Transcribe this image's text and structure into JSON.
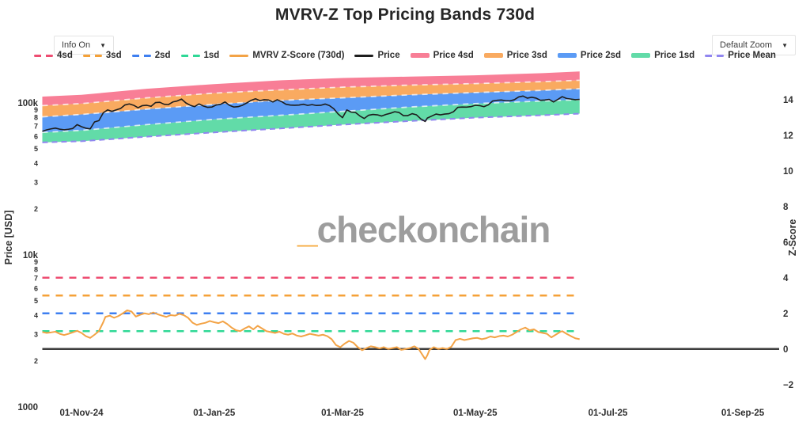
{
  "header": {
    "title": "MVRV-Z Top Pricing Bands 730d"
  },
  "controls": {
    "info_dropdown_label": "Info On",
    "zoom_dropdown_label": "Default Zoom",
    "dropdown_arrow": "▼"
  },
  "watermark": {
    "underscore": "_",
    "text": "checkonchain"
  },
  "chart_data": {
    "type": "line",
    "title": "MVRV-Z Top Pricing Bands 730d",
    "x_axis": {
      "ticks": [
        {
          "date": "2024-11-01",
          "label": "01-Nov-24"
        },
        {
          "date": "2025-01-01",
          "label": "01-Jan-25"
        },
        {
          "date": "2025-03-01",
          "label": "01-Mar-25"
        },
        {
          "date": "2025-05-01",
          "label": "01-May-25"
        },
        {
          "date": "2025-07-01",
          "label": "01-Jul-25"
        },
        {
          "date": "2025-09-01",
          "label": "01-Sep-25"
        }
      ]
    },
    "y_left": {
      "label": "Price [USD]",
      "scale": "log",
      "major_ticks": [
        {
          "value_kusd": 100,
          "label": "100k"
        },
        {
          "value_kusd": 10,
          "label": "10k"
        },
        {
          "value_kusd": 1,
          "label": "1000"
        }
      ],
      "minor_tick_digits": [
        9,
        8,
        7,
        6,
        5,
        4,
        3,
        2
      ]
    },
    "y_right": {
      "label": "Z-Score",
      "ticks": [
        14,
        12,
        10,
        8,
        6,
        4,
        2,
        0,
        -2
      ]
    },
    "legend": [
      {
        "label": "4sd",
        "swatch": "dash",
        "color": "#ee4d72"
      },
      {
        "label": "3sd",
        "swatch": "dash",
        "color": "#f5a138"
      },
      {
        "label": "2sd",
        "swatch": "dash",
        "color": "#3e7ff0"
      },
      {
        "label": "1sd",
        "swatch": "dash",
        "color": "#2fd896"
      },
      {
        "label": "MVRV Z-Score (730d)",
        "swatch": "line",
        "color": "#f3a346"
      },
      {
        "label": "Price",
        "swatch": "line",
        "color": "#1e1e1e"
      },
      {
        "label": "Price 4sd",
        "swatch": "band",
        "color": "#f87e96"
      },
      {
        "label": "Price 3sd",
        "swatch": "band",
        "color": "#f9aa60"
      },
      {
        "label": "Price 2sd",
        "swatch": "band",
        "color": "#5b9bf5"
      },
      {
        "label": "Price 1sd",
        "swatch": "band",
        "color": "#62dba8"
      },
      {
        "label": "Price Mean",
        "swatch": "dash",
        "color": "#9186f0"
      }
    ],
    "zscore_thresholds": [
      {
        "name": "4sd",
        "z": 4,
        "color": "#ee4d72"
      },
      {
        "name": "3sd",
        "z": 3,
        "color": "#f5a138"
      },
      {
        "name": "2sd",
        "z": 2,
        "color": "#3e7ff0"
      },
      {
        "name": "1sd",
        "z": 1,
        "color": "#2fd896"
      }
    ],
    "zero_line": {
      "z": 0,
      "color": "#3d3d3d"
    },
    "price_bands": {
      "units": "thousand USD",
      "dates": [
        "2024-10-14",
        "2024-11-01",
        "2024-12-01",
        "2025-01-01",
        "2025-02-01",
        "2025-03-01",
        "2025-04-01",
        "2025-05-01",
        "2025-06-01",
        "2025-06-18"
      ],
      "mean": [
        55,
        56,
        60,
        64,
        68,
        72,
        76,
        80,
        83,
        85
      ],
      "sd1": [
        64,
        66,
        72,
        78,
        83,
        88,
        94,
        99,
        103,
        105
      ],
      "sd2": [
        81,
        84,
        91,
        98,
        104,
        108,
        113,
        117,
        121,
        124
      ],
      "sd3": [
        96,
        99,
        108,
        116,
        122,
        127,
        131,
        134,
        138,
        141
      ],
      "sd4": [
        110,
        113,
        124,
        133,
        141,
        146,
        149,
        152,
        157,
        161
      ],
      "band_colors": {
        "sd1": "#62dba8",
        "sd2": "#5b9bf5",
        "sd3": "#f9aa60",
        "sd4": "#f87e96"
      },
      "mean_line_color": "#9186f0"
    },
    "price_series": {
      "name": "Price",
      "color": "#1e1e1e",
      "units": "thousand USD",
      "points": [
        [
          "2024-10-14",
          65
        ],
        [
          "2024-10-16",
          66.5
        ],
        [
          "2024-10-18",
          67.5
        ],
        [
          "2024-10-20",
          68.3
        ],
        [
          "2024-10-22",
          67.2
        ],
        [
          "2024-10-24",
          66.6
        ],
        [
          "2024-10-26",
          67.1
        ],
        [
          "2024-10-28",
          67.9
        ],
        [
          "2024-10-30",
          72
        ],
        [
          "2024-11-01",
          69.8
        ],
        [
          "2024-11-03",
          68.2
        ],
        [
          "2024-11-05",
          67.5
        ],
        [
          "2024-11-07",
          75
        ],
        [
          "2024-11-09",
          76.5
        ],
        [
          "2024-11-11",
          86
        ],
        [
          "2024-11-13",
          90
        ],
        [
          "2024-11-15",
          88
        ],
        [
          "2024-11-17",
          90
        ],
        [
          "2024-11-19",
          92
        ],
        [
          "2024-11-21",
          97
        ],
        [
          "2024-11-23",
          98.5
        ],
        [
          "2024-11-25",
          96.5
        ],
        [
          "2024-11-27",
          93
        ],
        [
          "2024-11-29",
          96
        ],
        [
          "2024-12-01",
          96.5
        ],
        [
          "2024-12-03",
          95
        ],
        [
          "2024-12-05",
          100.5
        ],
        [
          "2024-12-07",
          101
        ],
        [
          "2024-12-09",
          98
        ],
        [
          "2024-12-11",
          97.5
        ],
        [
          "2024-12-13",
          101.5
        ],
        [
          "2024-12-15",
          103
        ],
        [
          "2024-12-17",
          106
        ],
        [
          "2024-12-19",
          100
        ],
        [
          "2024-12-21",
          96.5
        ],
        [
          "2024-12-23",
          94.5
        ],
        [
          "2024-12-25",
          98.5
        ],
        [
          "2024-12-27",
          95.5
        ],
        [
          "2024-12-29",
          93.5
        ],
        [
          "2024-12-31",
          94
        ],
        [
          "2025-01-02",
          97
        ],
        [
          "2025-01-04",
          98
        ],
        [
          "2025-01-06",
          101.5
        ],
        [
          "2025-01-08",
          96.5
        ],
        [
          "2025-01-10",
          94
        ],
        [
          "2025-01-12",
          94.5
        ],
        [
          "2025-01-14",
          96.5
        ],
        [
          "2025-01-16",
          100
        ],
        [
          "2025-01-18",
          104
        ],
        [
          "2025-01-20",
          106.5
        ],
        [
          "2025-01-22",
          103.5
        ],
        [
          "2025-01-24",
          105
        ],
        [
          "2025-01-26",
          104.5
        ],
        [
          "2025-01-28",
          101.5
        ],
        [
          "2025-01-30",
          105
        ],
        [
          "2025-02-01",
          102
        ],
        [
          "2025-02-03",
          98
        ],
        [
          "2025-02-05",
          96.8
        ],
        [
          "2025-02-07",
          96.5
        ],
        [
          "2025-02-09",
          96.8
        ],
        [
          "2025-02-11",
          98
        ],
        [
          "2025-02-13",
          96.3
        ],
        [
          "2025-02-15",
          97.5
        ],
        [
          "2025-02-17",
          96.2
        ],
        [
          "2025-02-19",
          96.5
        ],
        [
          "2025-02-21",
          98.3
        ],
        [
          "2025-02-23",
          96
        ],
        [
          "2025-02-25",
          91.5
        ],
        [
          "2025-02-27",
          84.5
        ],
        [
          "2025-03-01",
          80
        ],
        [
          "2025-03-03",
          90
        ],
        [
          "2025-03-05",
          87
        ],
        [
          "2025-03-07",
          86.5
        ],
        [
          "2025-03-09",
          82
        ],
        [
          "2025-03-11",
          79
        ],
        [
          "2025-03-13",
          83
        ],
        [
          "2025-03-15",
          84
        ],
        [
          "2025-03-17",
          83.5
        ],
        [
          "2025-03-19",
          82
        ],
        [
          "2025-03-21",
          84
        ],
        [
          "2025-03-23",
          85.5
        ],
        [
          "2025-03-25",
          87.5
        ],
        [
          "2025-03-27",
          86.5
        ],
        [
          "2025-03-29",
          82.5
        ],
        [
          "2025-03-31",
          82.5
        ],
        [
          "2025-04-02",
          85
        ],
        [
          "2025-04-04",
          83.5
        ],
        [
          "2025-04-06",
          78.5
        ],
        [
          "2025-04-08",
          75.5
        ],
        [
          "2025-04-09",
          79.5
        ],
        [
          "2025-04-11",
          82
        ],
        [
          "2025-04-13",
          84.5
        ],
        [
          "2025-04-15",
          83.5
        ],
        [
          "2025-04-17",
          84.5
        ],
        [
          "2025-04-19",
          85
        ],
        [
          "2025-04-21",
          87.5
        ],
        [
          "2025-04-23",
          93.5
        ],
        [
          "2025-04-25",
          94
        ],
        [
          "2025-04-27",
          93.8
        ],
        [
          "2025-04-29",
          94.5
        ],
        [
          "2025-05-01",
          96.5
        ],
        [
          "2025-05-03",
          96
        ],
        [
          "2025-05-05",
          94.5
        ],
        [
          "2025-05-07",
          97
        ],
        [
          "2025-05-09",
          103
        ],
        [
          "2025-05-11",
          104
        ],
        [
          "2025-05-13",
          104.5
        ],
        [
          "2025-05-15",
          103.5
        ],
        [
          "2025-05-17",
          103.2
        ],
        [
          "2025-05-19",
          105
        ],
        [
          "2025-05-21",
          109.5
        ],
        [
          "2025-05-23",
          111
        ],
        [
          "2025-05-25",
          107.5
        ],
        [
          "2025-05-27",
          109
        ],
        [
          "2025-05-29",
          107.5
        ],
        [
          "2025-05-31",
          104
        ],
        [
          "2025-06-02",
          104.5
        ],
        [
          "2025-06-04",
          105.5
        ],
        [
          "2025-06-06",
          101.5
        ],
        [
          "2025-06-08",
          105.5
        ],
        [
          "2025-06-10",
          110
        ],
        [
          "2025-06-12",
          107
        ],
        [
          "2025-06-14",
          106
        ],
        [
          "2025-06-16",
          105
        ],
        [
          "2025-06-18",
          105.5
        ]
      ]
    },
    "zscore_series": {
      "name": "MVRV Z-Score (730d)",
      "color": "#f3a346",
      "points": [
        [
          "2024-10-14",
          0.95
        ],
        [
          "2024-10-16",
          0.9
        ],
        [
          "2024-10-18",
          0.93
        ],
        [
          "2024-10-20",
          0.97
        ],
        [
          "2024-10-22",
          0.85
        ],
        [
          "2024-10-24",
          0.78
        ],
        [
          "2024-10-26",
          0.85
        ],
        [
          "2024-10-28",
          0.93
        ],
        [
          "2024-10-30",
          1.02
        ],
        [
          "2024-11-01",
          0.9
        ],
        [
          "2024-11-03",
          0.72
        ],
        [
          "2024-11-05",
          0.62
        ],
        [
          "2024-11-07",
          0.8
        ],
        [
          "2024-11-09",
          1.0
        ],
        [
          "2024-11-11",
          1.5
        ],
        [
          "2024-11-12",
          1.8
        ],
        [
          "2024-11-14",
          1.87
        ],
        [
          "2024-11-16",
          1.75
        ],
        [
          "2024-11-18",
          1.85
        ],
        [
          "2024-11-20",
          2.0
        ],
        [
          "2024-11-22",
          2.17
        ],
        [
          "2024-11-24",
          2.1
        ],
        [
          "2024-11-26",
          1.82
        ],
        [
          "2024-11-28",
          1.92
        ],
        [
          "2024-11-30",
          2.0
        ],
        [
          "2024-12-02",
          1.95
        ],
        [
          "2024-12-04",
          2.05
        ],
        [
          "2024-12-06",
          1.95
        ],
        [
          "2024-12-08",
          1.87
        ],
        [
          "2024-12-10",
          1.8
        ],
        [
          "2024-12-12",
          1.9
        ],
        [
          "2024-12-14",
          1.87
        ],
        [
          "2024-12-16",
          1.97
        ],
        [
          "2024-12-18",
          1.9
        ],
        [
          "2024-12-20",
          1.75
        ],
        [
          "2024-12-22",
          1.48
        ],
        [
          "2024-12-24",
          1.35
        ],
        [
          "2024-12-26",
          1.42
        ],
        [
          "2024-12-28",
          1.47
        ],
        [
          "2024-12-30",
          1.57
        ],
        [
          "2025-01-01",
          1.5
        ],
        [
          "2025-01-03",
          1.45
        ],
        [
          "2025-01-05",
          1.55
        ],
        [
          "2025-01-07",
          1.4
        ],
        [
          "2025-01-09",
          1.2
        ],
        [
          "2025-01-11",
          1.05
        ],
        [
          "2025-01-13",
          1.0
        ],
        [
          "2025-01-15",
          1.15
        ],
        [
          "2025-01-17",
          1.27
        ],
        [
          "2025-01-19",
          1.1
        ],
        [
          "2025-01-21",
          1.3
        ],
        [
          "2025-01-23",
          1.15
        ],
        [
          "2025-01-25",
          1.0
        ],
        [
          "2025-01-27",
          0.95
        ],
        [
          "2025-01-29",
          0.9
        ],
        [
          "2025-01-31",
          0.97
        ],
        [
          "2025-02-02",
          0.85
        ],
        [
          "2025-02-04",
          0.8
        ],
        [
          "2025-02-06",
          0.87
        ],
        [
          "2025-02-08",
          0.75
        ],
        [
          "2025-02-10",
          0.7
        ],
        [
          "2025-02-12",
          0.77
        ],
        [
          "2025-02-14",
          0.85
        ],
        [
          "2025-02-16",
          0.8
        ],
        [
          "2025-02-18",
          0.75
        ],
        [
          "2025-02-20",
          0.8
        ],
        [
          "2025-02-22",
          0.72
        ],
        [
          "2025-02-24",
          0.55
        ],
        [
          "2025-02-26",
          0.22
        ],
        [
          "2025-02-28",
          0.1
        ],
        [
          "2025-03-02",
          0.3
        ],
        [
          "2025-03-04",
          0.45
        ],
        [
          "2025-03-06",
          0.35
        ],
        [
          "2025-03-08",
          0.1
        ],
        [
          "2025-03-10",
          -0.07
        ],
        [
          "2025-03-12",
          0.05
        ],
        [
          "2025-03-14",
          0.15
        ],
        [
          "2025-03-16",
          0.1
        ],
        [
          "2025-03-18",
          0.03
        ],
        [
          "2025-03-20",
          0.1
        ],
        [
          "2025-03-22",
          0
        ],
        [
          "2025-03-24",
          0.05
        ],
        [
          "2025-03-26",
          0.1
        ],
        [
          "2025-03-28",
          -0.05
        ],
        [
          "2025-03-30",
          0
        ],
        [
          "2025-04-01",
          0.05
        ],
        [
          "2025-04-03",
          0.15
        ],
        [
          "2025-04-05",
          0
        ],
        [
          "2025-04-07",
          -0.38
        ],
        [
          "2025-04-08",
          -0.57
        ],
        [
          "2025-04-09",
          -0.35
        ],
        [
          "2025-04-10",
          -0.05
        ],
        [
          "2025-04-12",
          0.1
        ],
        [
          "2025-04-14",
          0
        ],
        [
          "2025-04-16",
          0.05
        ],
        [
          "2025-04-18",
          0
        ],
        [
          "2025-04-20",
          0.12
        ],
        [
          "2025-04-22",
          0.5
        ],
        [
          "2025-04-24",
          0.57
        ],
        [
          "2025-04-26",
          0.5
        ],
        [
          "2025-04-28",
          0.55
        ],
        [
          "2025-04-30",
          0.6
        ],
        [
          "2025-05-02",
          0.62
        ],
        [
          "2025-05-04",
          0.55
        ],
        [
          "2025-05-06",
          0.6
        ],
        [
          "2025-05-08",
          0.7
        ],
        [
          "2025-05-10",
          0.65
        ],
        [
          "2025-05-12",
          0.72
        ],
        [
          "2025-05-14",
          0.75
        ],
        [
          "2025-05-16",
          0.7
        ],
        [
          "2025-05-18",
          0.8
        ],
        [
          "2025-05-20",
          0.95
        ],
        [
          "2025-05-22",
          1.1
        ],
        [
          "2025-05-24",
          1.2
        ],
        [
          "2025-05-26",
          1.05
        ],
        [
          "2025-05-28",
          1.1
        ],
        [
          "2025-05-30",
          0.95
        ],
        [
          "2025-06-01",
          0.9
        ],
        [
          "2025-06-03",
          0.85
        ],
        [
          "2025-06-05",
          0.65
        ],
        [
          "2025-06-07",
          0.8
        ],
        [
          "2025-06-09",
          0.95
        ],
        [
          "2025-06-10",
          1.0
        ],
        [
          "2025-06-12",
          0.85
        ],
        [
          "2025-06-14",
          0.72
        ],
        [
          "2025-06-16",
          0.6
        ],
        [
          "2025-06-18",
          0.55
        ]
      ]
    }
  }
}
